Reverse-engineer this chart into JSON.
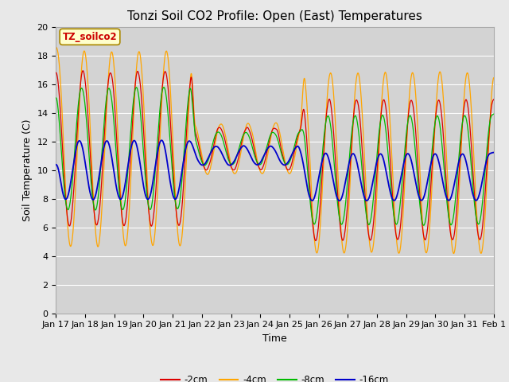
{
  "title": "Tonzi Soil CO2 Profile: Open (East) Temperatures",
  "xlabel": "Time",
  "ylabel": "Soil Temperature (C)",
  "ylim": [
    0,
    20
  ],
  "bg_color": "#e8e8e8",
  "plot_bg_color": "#d3d3d3",
  "legend_label": "TZ_soilco2",
  "series_labels": [
    "-2cm",
    "-4cm",
    "-8cm",
    "-16cm"
  ],
  "series_colors": [
    "#dd0000",
    "#ffa500",
    "#00bb00",
    "#0000cc"
  ],
  "xtick_labels": [
    "Jan 17",
    "Jan 18",
    "Jan 19",
    "Jan 20",
    "Jan 21",
    "Jan 22",
    "Jan 23",
    "Jan 24",
    "Jan 25",
    "Jan 26",
    "Jan 27",
    "Jan 28",
    "Jan 29",
    "Jan 30",
    "Jan 31",
    "Feb 1"
  ],
  "title_fontsize": 11,
  "axis_fontsize": 9,
  "tick_fontsize": 8,
  "legend_box_color": "#ffffcc",
  "legend_box_edge": "#aa8800"
}
